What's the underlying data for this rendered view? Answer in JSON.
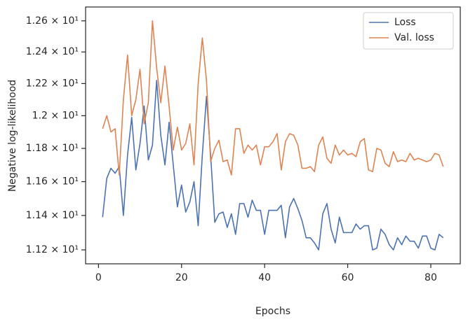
{
  "chart_data": {
    "type": "line",
    "xlabel": "Epochs",
    "ylabel": "Negative log-likelihood",
    "x": [
      1,
      2,
      3,
      4,
      5,
      6,
      7,
      8,
      9,
      10,
      11,
      12,
      13,
      14,
      15,
      16,
      17,
      18,
      19,
      20,
      21,
      22,
      23,
      24,
      25,
      26,
      27,
      28,
      29,
      30,
      31,
      32,
      33,
      34,
      35,
      36,
      37,
      38,
      39,
      40,
      41,
      42,
      43,
      44,
      45,
      46,
      47,
      48,
      49,
      50,
      51,
      52,
      53,
      54,
      55,
      56,
      57,
      58,
      59,
      60,
      61,
      62,
      63,
      64,
      65,
      66,
      67,
      68,
      69,
      70,
      71,
      72,
      73,
      74,
      75,
      76,
      77,
      78,
      79,
      80,
      81,
      82,
      83
    ],
    "series": [
      {
        "name": "Loss",
        "color": "#4c72b0",
        "values": [
          11.39,
          11.62,
          11.68,
          11.65,
          11.69,
          11.4,
          11.76,
          11.99,
          11.67,
          11.83,
          12.06,
          11.73,
          11.82,
          12.22,
          11.88,
          11.7,
          11.96,
          11.7,
          11.45,
          11.58,
          11.42,
          11.48,
          11.6,
          11.34,
          11.76,
          12.12,
          11.76,
          11.36,
          11.41,
          11.42,
          11.33,
          11.41,
          11.29,
          11.47,
          11.47,
          11.39,
          11.49,
          11.43,
          11.43,
          11.29,
          11.43,
          11.43,
          11.43,
          11.46,
          11.27,
          11.45,
          11.5,
          11.44,
          11.37,
          11.27,
          11.27,
          11.24,
          11.2,
          11.41,
          11.47,
          11.32,
          11.24,
          11.39,
          11.3,
          11.3,
          11.3,
          11.35,
          11.32,
          11.34,
          11.34,
          11.2,
          11.21,
          11.32,
          11.29,
          11.23,
          11.2,
          11.27,
          11.23,
          11.28,
          11.25,
          11.25,
          11.21,
          11.28,
          11.28,
          11.21,
          11.2,
          11.29,
          11.27
        ]
      },
      {
        "name": "Val. loss",
        "color": "#dd8452",
        "values": [
          11.92,
          12.0,
          11.9,
          11.92,
          11.64,
          12.1,
          12.38,
          12.0,
          12.1,
          12.29,
          11.95,
          12.08,
          12.6,
          12.3,
          12.08,
          12.31,
          12.06,
          11.79,
          11.93,
          11.79,
          11.83,
          11.95,
          11.7,
          12.2,
          12.49,
          12.22,
          11.72,
          11.8,
          11.85,
          11.72,
          11.73,
          11.64,
          11.92,
          11.92,
          11.77,
          11.82,
          11.79,
          11.82,
          11.7,
          11.81,
          11.81,
          11.84,
          11.89,
          11.67,
          11.84,
          11.89,
          11.88,
          11.82,
          11.68,
          11.68,
          11.69,
          11.66,
          11.82,
          11.87,
          11.74,
          11.71,
          11.82,
          11.76,
          11.79,
          11.76,
          11.77,
          11.75,
          11.84,
          11.86,
          11.67,
          11.66,
          11.8,
          11.79,
          11.71,
          11.69,
          11.78,
          11.72,
          11.73,
          11.72,
          11.77,
          11.73,
          11.74,
          11.73,
          11.72,
          11.73,
          11.77,
          11.76,
          11.69
        ]
      }
    ],
    "xlim": [
      -3.1,
      87.1
    ],
    "xticks": [
      0,
      20,
      40,
      60,
      80
    ],
    "ylim": [
      11.12,
      12.69
    ],
    "log_y": true,
    "yticks": [
      {
        "value": 11.2,
        "label": "1.12 × 10¹"
      },
      {
        "value": 11.4,
        "label": "1.14 × 10¹"
      },
      {
        "value": 11.6,
        "label": "1.16 × 10¹"
      },
      {
        "value": 11.8,
        "label": "1.18 × 10¹"
      },
      {
        "value": 12.0,
        "label": "1.2 × 10¹"
      },
      {
        "value": 12.2,
        "label": "1.22 × 10¹"
      },
      {
        "value": 12.4,
        "label": "1.24 × 10¹"
      },
      {
        "value": 12.6,
        "label": "1.26 × 10¹"
      }
    ],
    "grid": false,
    "legend": "upper right"
  }
}
